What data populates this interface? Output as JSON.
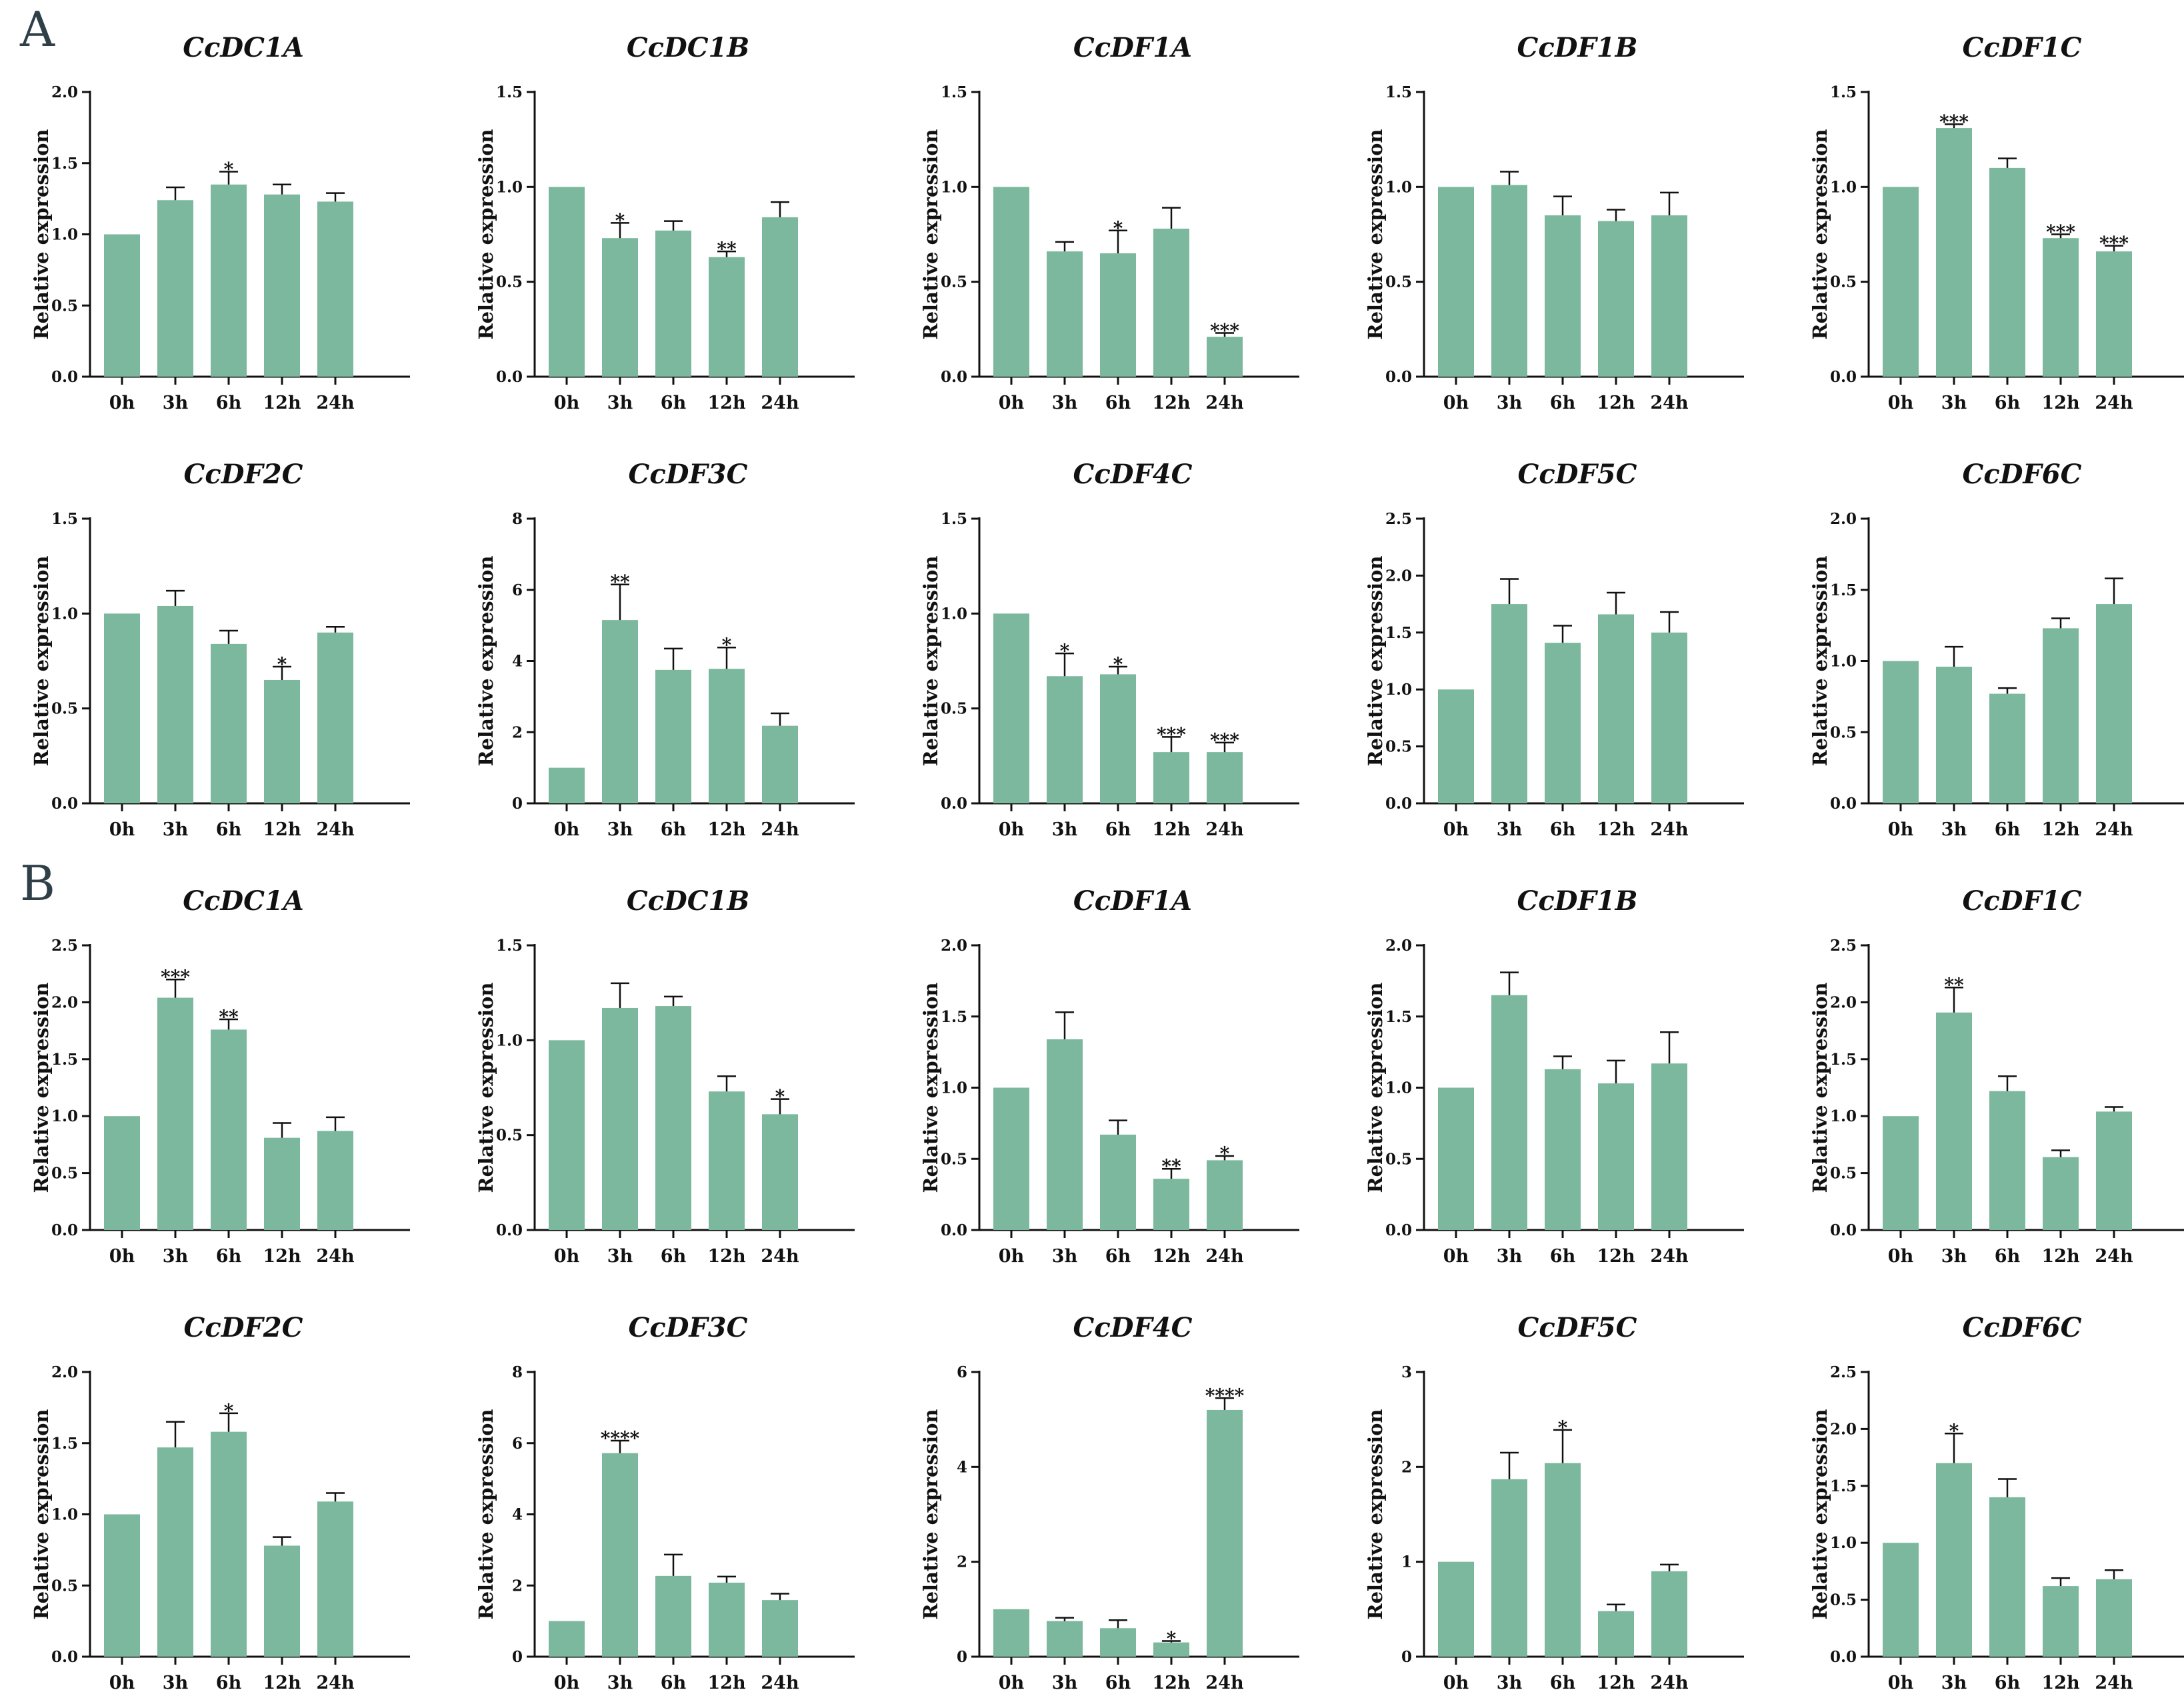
{
  "panels": [
    {
      "label": "A"
    },
    {
      "label": "B"
    }
  ],
  "chart_data": [
    {
      "panel": "A",
      "type": "bar",
      "title": "CcDC1A",
      "ylabel": "Relative expression",
      "categories": [
        "0h",
        "3h",
        "6h",
        "12h",
        "24h"
      ],
      "values": [
        1.0,
        1.24,
        1.35,
        1.28,
        1.23
      ],
      "errors": [
        0,
        0.09,
        0.09,
        0.07,
        0.06
      ],
      "significance": [
        "",
        "",
        "*",
        "",
        ""
      ],
      "ylim": [
        0,
        2.0
      ],
      "yticks": [
        "0.0",
        "0.5",
        "1.0",
        "1.5",
        "2.0"
      ]
    },
    {
      "panel": "A",
      "type": "bar",
      "title": "CcDC1B",
      "ylabel": "Relative expression",
      "categories": [
        "0h",
        "3h",
        "6h",
        "12h",
        "24h"
      ],
      "values": [
        1.0,
        0.73,
        0.77,
        0.63,
        0.84
      ],
      "errors": [
        0,
        0.08,
        0.05,
        0.03,
        0.08
      ],
      "significance": [
        "",
        "*",
        "",
        "**",
        ""
      ],
      "ylim": [
        0,
        1.5
      ],
      "yticks": [
        "0.0",
        "0.5",
        "1.0",
        "1.5"
      ]
    },
    {
      "panel": "A",
      "type": "bar",
      "title": "CcDF1A",
      "ylabel": "Relative expression",
      "categories": [
        "0h",
        "3h",
        "6h",
        "12h",
        "24h"
      ],
      "values": [
        1.0,
        0.66,
        0.65,
        0.78,
        0.21
      ],
      "errors": [
        0,
        0.05,
        0.12,
        0.11,
        0.02
      ],
      "significance": [
        "",
        "",
        "*",
        "",
        "***"
      ],
      "ylim": [
        0,
        1.5
      ],
      "yticks": [
        "0.0",
        "0.5",
        "1.0",
        "1.5"
      ]
    },
    {
      "panel": "A",
      "type": "bar",
      "title": "CcDF1B",
      "ylabel": "Relative expression",
      "categories": [
        "0h",
        "3h",
        "6h",
        "12h",
        "24h"
      ],
      "values": [
        1.0,
        1.01,
        0.85,
        0.82,
        0.85
      ],
      "errors": [
        0,
        0.07,
        0.1,
        0.06,
        0.12
      ],
      "significance": [
        "",
        "",
        "",
        "",
        ""
      ],
      "ylim": [
        0,
        1.5
      ],
      "yticks": [
        "0.0",
        "0.5",
        "1.0",
        "1.5"
      ]
    },
    {
      "panel": "A",
      "type": "bar",
      "title": "CcDF1C",
      "ylabel": "Relative expression",
      "categories": [
        "0h",
        "3h",
        "6h",
        "12h",
        "24h"
      ],
      "values": [
        1.0,
        1.31,
        1.1,
        0.73,
        0.66
      ],
      "errors": [
        0,
        0.02,
        0.05,
        0.02,
        0.03
      ],
      "significance": [
        "",
        "***",
        "",
        "***",
        "***"
      ],
      "ylim": [
        0,
        1.5
      ],
      "yticks": [
        "0.0",
        "0.5",
        "1.0",
        "1.5"
      ]
    },
    {
      "panel": "A",
      "type": "bar",
      "title": "CcDF2C",
      "ylabel": "Relative expression",
      "categories": [
        "0h",
        "3h",
        "6h",
        "12h",
        "24h"
      ],
      "values": [
        1.0,
        1.04,
        0.84,
        0.65,
        0.9
      ],
      "errors": [
        0,
        0.08,
        0.07,
        0.07,
        0.03
      ],
      "significance": [
        "",
        "",
        "",
        "*",
        ""
      ],
      "ylim": [
        0,
        1.5
      ],
      "yticks": [
        "0.0",
        "0.5",
        "1.0",
        "1.5"
      ]
    },
    {
      "panel": "A",
      "type": "bar",
      "title": "CcDF3C",
      "ylabel": "Relative expression",
      "categories": [
        "0h",
        "3h",
        "6h",
        "12h",
        "24h"
      ],
      "values": [
        1.0,
        5.15,
        3.75,
        3.78,
        2.18
      ],
      "errors": [
        0,
        1.0,
        0.6,
        0.6,
        0.35
      ],
      "significance": [
        "",
        "**",
        "",
        "*",
        ""
      ],
      "ylim": [
        0,
        8
      ],
      "yticks": [
        "0",
        "2",
        "4",
        "6",
        "8"
      ]
    },
    {
      "panel": "A",
      "type": "bar",
      "title": "CcDF4C",
      "ylabel": "Relative expression",
      "categories": [
        "0h",
        "3h",
        "6h",
        "12h",
        "24h"
      ],
      "values": [
        1.0,
        0.67,
        0.68,
        0.27,
        0.27
      ],
      "errors": [
        0,
        0.12,
        0.04,
        0.08,
        0.05
      ],
      "significance": [
        "",
        "*",
        "*",
        "***",
        "***"
      ],
      "ylim": [
        0,
        1.5
      ],
      "yticks": [
        "0.0",
        "0.5",
        "1.0",
        "1.5"
      ]
    },
    {
      "panel": "A",
      "type": "bar",
      "title": "CcDF5C",
      "ylabel": "Relative expression",
      "categories": [
        "0h",
        "3h",
        "6h",
        "12h",
        "24h"
      ],
      "values": [
        1.0,
        1.75,
        1.41,
        1.66,
        1.5
      ],
      "errors": [
        0,
        0.22,
        0.15,
        0.19,
        0.18
      ],
      "significance": [
        "",
        "",
        "",
        "",
        ""
      ],
      "ylim": [
        0,
        2.5
      ],
      "yticks": [
        "0.0",
        "0.5",
        "1.0",
        "1.5",
        "2.0",
        "2.5"
      ]
    },
    {
      "panel": "A",
      "type": "bar",
      "title": "CcDF6C",
      "ylabel": "Relative expression",
      "categories": [
        "0h",
        "3h",
        "6h",
        "12h",
        "24h"
      ],
      "values": [
        1.0,
        0.96,
        0.77,
        1.23,
        1.4
      ],
      "errors": [
        0,
        0.14,
        0.04,
        0.07,
        0.18
      ],
      "significance": [
        "",
        "",
        "",
        "",
        ""
      ],
      "ylim": [
        0,
        2.0
      ],
      "yticks": [
        "0.0",
        "0.5",
        "1.0",
        "1.5",
        "2.0"
      ]
    },
    {
      "panel": "B",
      "type": "bar",
      "title": "CcDC1A",
      "ylabel": "Relative expression",
      "categories": [
        "0h",
        "3h",
        "6h",
        "12h",
        "24h"
      ],
      "values": [
        1.0,
        2.04,
        1.76,
        0.81,
        0.87
      ],
      "errors": [
        0,
        0.16,
        0.09,
        0.13,
        0.12
      ],
      "significance": [
        "",
        "***",
        "**",
        "",
        ""
      ],
      "ylim": [
        0,
        2.5
      ],
      "yticks": [
        "0.0",
        "0.5",
        "1.0",
        "1.5",
        "2.0",
        "2.5"
      ]
    },
    {
      "panel": "B",
      "type": "bar",
      "title": "CcDC1B",
      "ylabel": "Relative expression",
      "categories": [
        "0h",
        "3h",
        "6h",
        "12h",
        "24h"
      ],
      "values": [
        1.0,
        1.17,
        1.18,
        0.73,
        0.61
      ],
      "errors": [
        0,
        0.13,
        0.05,
        0.08,
        0.08
      ],
      "significance": [
        "",
        "",
        "",
        "",
        "*"
      ],
      "ylim": [
        0,
        1.5
      ],
      "yticks": [
        "0.0",
        "0.5",
        "1.0",
        "1.5"
      ]
    },
    {
      "panel": "B",
      "type": "bar",
      "title": "CcDF1A",
      "ylabel": "Relative expression",
      "categories": [
        "0h",
        "3h",
        "6h",
        "12h",
        "24h"
      ],
      "values": [
        1.0,
        1.34,
        0.67,
        0.36,
        0.49
      ],
      "errors": [
        0,
        0.19,
        0.1,
        0.07,
        0.03
      ],
      "significance": [
        "",
        "",
        "",
        "**",
        "*"
      ],
      "ylim": [
        0,
        2.0
      ],
      "yticks": [
        "0.0",
        "0.5",
        "1.0",
        "1.5",
        "2.0"
      ]
    },
    {
      "panel": "B",
      "type": "bar",
      "title": "CcDF1B",
      "ylabel": "Relative expression",
      "categories": [
        "0h",
        "3h",
        "6h",
        "12h",
        "24h"
      ],
      "values": [
        1.0,
        1.65,
        1.13,
        1.03,
        1.17
      ],
      "errors": [
        0,
        0.16,
        0.09,
        0.16,
        0.22
      ],
      "significance": [
        "",
        "",
        "",
        "",
        ""
      ],
      "ylim": [
        0,
        2.0
      ],
      "yticks": [
        "0.0",
        "0.5",
        "1.0",
        "1.5",
        "2.0"
      ]
    },
    {
      "panel": "B",
      "type": "bar",
      "title": "CcDF1C",
      "ylabel": "Relative expression",
      "categories": [
        "0h",
        "3h",
        "6h",
        "12h",
        "24h"
      ],
      "values": [
        1.0,
        1.91,
        1.22,
        0.64,
        1.04
      ],
      "errors": [
        0,
        0.22,
        0.13,
        0.06,
        0.04
      ],
      "significance": [
        "",
        "**",
        "",
        "",
        ""
      ],
      "ylim": [
        0,
        2.5
      ],
      "yticks": [
        "0.0",
        "0.5",
        "1.0",
        "1.5",
        "2.0",
        "2.5"
      ]
    },
    {
      "panel": "B",
      "type": "bar",
      "title": "CcDF2C",
      "ylabel": "Relative expression",
      "categories": [
        "0h",
        "3h",
        "6h",
        "12h",
        "24h"
      ],
      "values": [
        1.0,
        1.47,
        1.58,
        0.78,
        1.09
      ],
      "errors": [
        0,
        0.18,
        0.13,
        0.06,
        0.06
      ],
      "significance": [
        "",
        "",
        "*",
        "",
        ""
      ],
      "ylim": [
        0,
        2.0
      ],
      "yticks": [
        "0.0",
        "0.5",
        "1.0",
        "1.5",
        "2.0"
      ]
    },
    {
      "panel": "B",
      "type": "bar",
      "title": "CcDF3C",
      "ylabel": "Relative expression",
      "categories": [
        "0h",
        "3h",
        "6h",
        "12h",
        "24h"
      ],
      "values": [
        1.0,
        5.72,
        2.27,
        2.08,
        1.59
      ],
      "errors": [
        0,
        0.35,
        0.6,
        0.17,
        0.18
      ],
      "significance": [
        "",
        "****",
        "",
        "",
        ""
      ],
      "ylim": [
        0,
        8
      ],
      "yticks": [
        "0",
        "2",
        "4",
        "6",
        "8"
      ]
    },
    {
      "panel": "B",
      "type": "bar",
      "title": "CcDF4C",
      "ylabel": "Relative expression",
      "categories": [
        "0h",
        "3h",
        "6h",
        "12h",
        "24h"
      ],
      "values": [
        1.0,
        0.75,
        0.6,
        0.3,
        5.2
      ],
      "errors": [
        0,
        0.07,
        0.17,
        0.03,
        0.25
      ],
      "significance": [
        "",
        "",
        "",
        "*",
        "****"
      ],
      "ylim": [
        0,
        6
      ],
      "yticks": [
        "0",
        "2",
        "4",
        "6"
      ]
    },
    {
      "panel": "B",
      "type": "bar",
      "title": "CcDF5C",
      "ylabel": "Relative expression",
      "categories": [
        "0h",
        "3h",
        "6h",
        "12h",
        "24h"
      ],
      "values": [
        1.0,
        1.87,
        2.04,
        0.48,
        0.9
      ],
      "errors": [
        0,
        0.28,
        0.35,
        0.07,
        0.07
      ],
      "significance": [
        "",
        "",
        "*",
        "",
        ""
      ],
      "ylim": [
        0,
        3
      ],
      "yticks": [
        "0",
        "1",
        "2",
        "3"
      ]
    },
    {
      "panel": "B",
      "type": "bar",
      "title": "CcDF6C",
      "ylabel": "Relative expression",
      "categories": [
        "0h",
        "3h",
        "6h",
        "12h",
        "24h"
      ],
      "values": [
        1.0,
        1.7,
        1.4,
        0.62,
        0.68
      ],
      "errors": [
        0,
        0.26,
        0.16,
        0.07,
        0.08
      ],
      "significance": [
        "",
        "*",
        "",
        "",
        ""
      ],
      "ylim": [
        0,
        2.5
      ],
      "yticks": [
        "0.0",
        "0.5",
        "1.0",
        "1.5",
        "2.0",
        "2.5"
      ]
    }
  ]
}
